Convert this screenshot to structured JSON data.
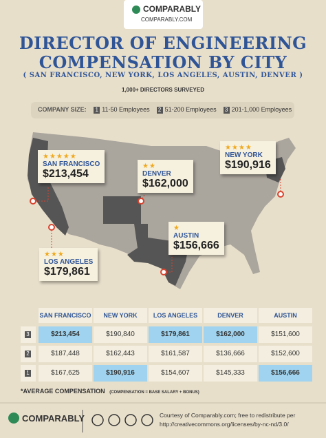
{
  "header": {
    "brand": "COMPARABLY",
    "url": "COMPARABLY.COM"
  },
  "title": {
    "line1": "DIRECTOR OF ENGINEERING",
    "line2": "COMPENSATION BY CITY",
    "cities": "( SAN FRANCISCO, NEW YORK, LOS ANGELES, AUSTIN, DENVER )"
  },
  "subtitle": "1,000+ DIRECTORS SURVEYED",
  "legend": {
    "label": "COMPANY SIZE:",
    "items": [
      {
        "key": "1",
        "text": "11-50 Employees"
      },
      {
        "key": "2",
        "text": "51-200 Employees"
      },
      {
        "key": "3",
        "text": "201-1,000 Employees"
      }
    ]
  },
  "callouts": [
    {
      "city": "SAN FRANCISCO",
      "salary": "$213,454"
    },
    {
      "city": "DENVER",
      "salary": "$162,000"
    },
    {
      "city": "NEW YORK",
      "salary": "$190,916"
    },
    {
      "city": "AUSTIN",
      "salary": "$156,666"
    },
    {
      "city": "LOS ANGELES",
      "salary": "$179,861"
    }
  ],
  "table": {
    "header": [
      "SAN FRANCISCO",
      "NEW YORK",
      "LOS ANGELES",
      "DENVER",
      "AUSTIN"
    ],
    "rows": [
      {
        "size": "3",
        "values": [
          "$213,454",
          "$190,840",
          "$179,861",
          "$162,000",
          "$151,600"
        ]
      },
      {
        "size": "2",
        "values": [
          "$187,448",
          "$162,443",
          "$161,587",
          "$136,666",
          "$152,600"
        ]
      },
      {
        "size": "1",
        "values": [
          "$167,625",
          "$190,916",
          "$154,607",
          "$145,333",
          "$156,666"
        ]
      }
    ]
  },
  "footnote": {
    "label": "*AVERAGE COMPENSATION",
    "note": "(COMPENSATION = BASE SALARY + BONUS)"
  },
  "footer": {
    "brand": "COMPARABLY",
    "credit1": "Courtesy of Comparably.com; free to redistribute per",
    "credit2": "http://creativecommons.org/licenses/by-nc-nd/3.0/"
  }
}
